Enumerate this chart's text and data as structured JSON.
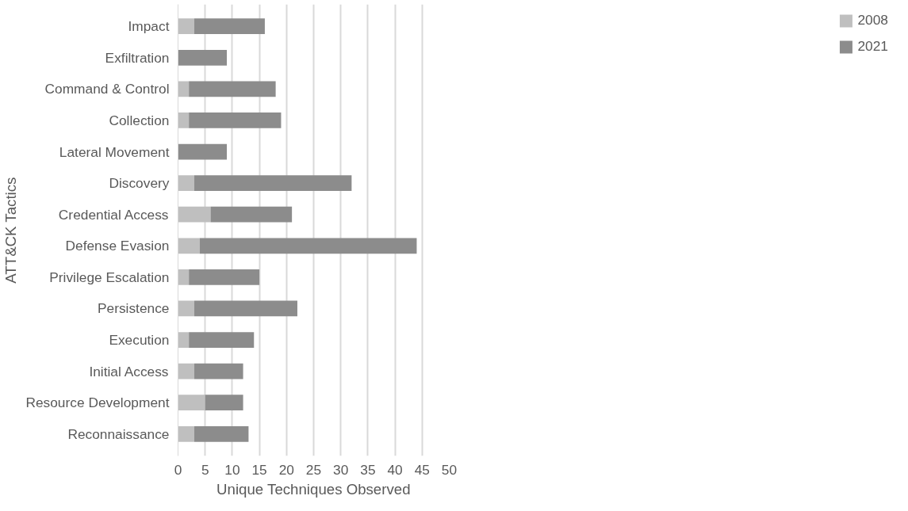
{
  "chart_data": {
    "type": "bar",
    "orientation": "horizontal",
    "stacked": true,
    "xlabel": "Unique Techniques Observed",
    "ylabel": "ATT&CK Tactics",
    "categories": [
      "Impact",
      "Exfiltration",
      "Command & Control",
      "Collection",
      "Lateral Movement",
      "Discovery",
      "Credential Access",
      "Defense Evasion",
      "Privilege Escalation",
      "Persistence",
      "Execution",
      "Initial Access",
      "Resource Development",
      "Reconnaissance"
    ],
    "series": [
      {
        "name": "2008",
        "color": "#bfbfbf",
        "values": [
          3,
          0,
          2,
          2,
          0,
          3,
          6,
          4,
          2,
          3,
          2,
          3,
          5,
          3
        ]
      },
      {
        "name": "2021",
        "color": "#8c8c8c",
        "values": [
          13,
          9,
          16,
          17,
          9,
          29,
          15,
          40,
          13,
          19,
          12,
          9,
          7,
          10
        ]
      }
    ],
    "xlim": [
      0,
      50
    ],
    "xticks": [
      0,
      5,
      10,
      15,
      20,
      25,
      30,
      35,
      40,
      45,
      50
    ],
    "grid": "x",
    "legend": "right"
  }
}
